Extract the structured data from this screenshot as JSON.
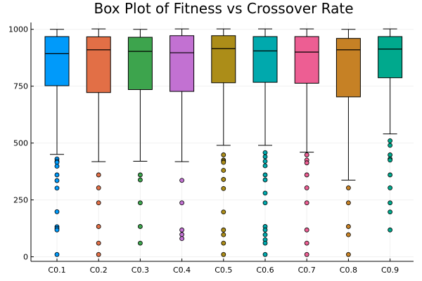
{
  "chart_data": {
    "type": "box",
    "title": "Box Plot of Fitness vs Crossover Rate",
    "xlabel": "",
    "ylabel": "",
    "ylim": [
      -20,
      1030
    ],
    "yticks": [
      0,
      250,
      500,
      750,
      1000
    ],
    "ytick_labels": [
      "0",
      "250",
      "500",
      "750",
      "1000"
    ],
    "grid": true,
    "legend": "none",
    "categories": [
      "C0.1",
      "C0.2",
      "C0.3",
      "C0.4",
      "C0.5",
      "C0.6",
      "C0.7",
      "C0.8",
      "C0.9"
    ],
    "series": [
      {
        "category": "C0.1",
        "color": "#009AFA",
        "min": 450,
        "q1": 752,
        "median": 893,
        "q3": 968,
        "max": 1000,
        "outliers": [
          430,
          420,
          415,
          398,
          360,
          335,
          302,
          198,
          132,
          125,
          118,
          10
        ]
      },
      {
        "category": "C0.2",
        "color": "#E26F46",
        "min": 418,
        "q1": 722,
        "median": 910,
        "q3": 967,
        "max": 1002,
        "outliers": [
          360,
          303,
          237,
          133,
          60,
          10
        ]
      },
      {
        "category": "C0.3",
        "color": "#3DA44D",
        "min": 420,
        "q1": 735,
        "median": 903,
        "q3": 965,
        "max": 1000,
        "outliers": [
          360,
          338,
          237,
          133,
          60
        ]
      },
      {
        "category": "C0.4",
        "color": "#C271D2",
        "min": 418,
        "q1": 727,
        "median": 897,
        "q3": 972,
        "max": 1002,
        "outliers": [
          336,
          237,
          118,
          98,
          80
        ]
      },
      {
        "category": "C0.5",
        "color": "#AC8D18",
        "min": 490,
        "q1": 765,
        "median": 915,
        "q3": 972,
        "max": 1002,
        "outliers": [
          448,
          425,
          420,
          415,
          380,
          340,
          300,
          197,
          118,
          97,
          60,
          10
        ]
      },
      {
        "category": "C0.6",
        "color": "#00A9AD",
        "min": 490,
        "q1": 767,
        "median": 905,
        "q3": 968,
        "max": 1002,
        "outliers": [
          458,
          440,
          420,
          400,
          360,
          338,
          280,
          237,
          133,
          118,
          97,
          75,
          60,
          10
        ]
      },
      {
        "category": "C0.7",
        "color": "#ED5E93",
        "min": 460,
        "q1": 763,
        "median": 900,
        "q3": 968,
        "max": 1002,
        "outliers": [
          448,
          425,
          413,
          360,
          303,
          237,
          118,
          60,
          10
        ]
      },
      {
        "category": "C0.8",
        "color": "#C68125",
        "min": 337,
        "q1": 703,
        "median": 910,
        "q3": 960,
        "max": 1000,
        "outliers": [
          303,
          237,
          133,
          97,
          10
        ]
      },
      {
        "category": "C0.9",
        "color": "#00A98D",
        "min": 540,
        "q1": 787,
        "median": 913,
        "q3": 968,
        "max": 1002,
        "outliers": [
          510,
          490,
          448,
          430,
          425,
          360,
          303,
          237,
          197,
          118
        ]
      }
    ]
  }
}
